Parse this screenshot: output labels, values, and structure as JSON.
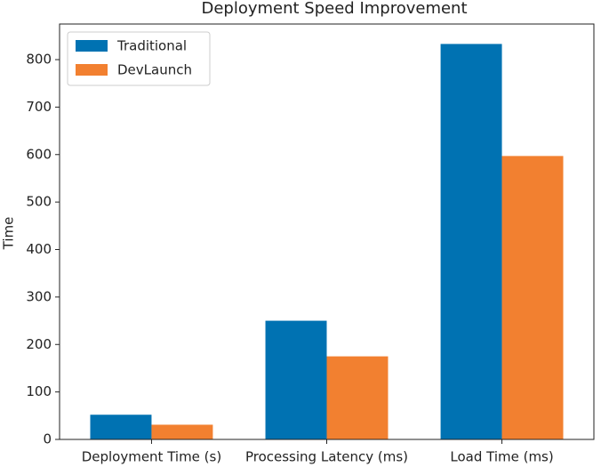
{
  "chart_data": {
    "type": "bar",
    "title": "Deployment Speed Improvement",
    "ylabel": "Time",
    "categories": [
      "Deployment Time (s)",
      "Processing Latency (ms)",
      "Load Time (ms)"
    ],
    "series": [
      {
        "name": "Traditional",
        "color": "#0072b2",
        "values": [
          52,
          250,
          833
        ]
      },
      {
        "name": "DevLaunch",
        "color": "#f28030",
        "values": [
          31,
          175,
          597
        ]
      }
    ],
    "ylim": [
      0,
      875
    ],
    "yticks": [
      0,
      100,
      200,
      300,
      400,
      500,
      600,
      700,
      800
    ],
    "legend": "upper-left"
  }
}
